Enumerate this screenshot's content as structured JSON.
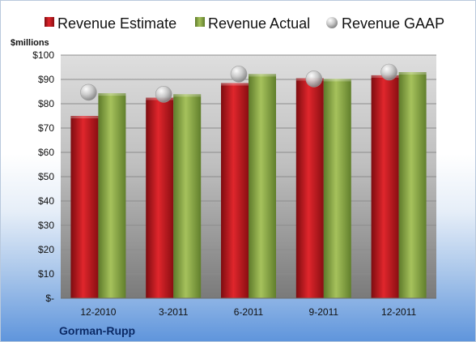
{
  "chart_data": {
    "type": "bar",
    "ylabel": "$millions",
    "ylim": [
      0,
      100
    ],
    "y_ticks": [
      "$-",
      "$10",
      "$20",
      "$30",
      "$40",
      "$50",
      "$60",
      "$70",
      "$80",
      "$90",
      "$100"
    ],
    "categories": [
      "12-2010",
      "3-2011",
      "6-2011",
      "9-2011",
      "12-2011"
    ],
    "series": [
      {
        "name": "Revenue Estimate",
        "type": "bar",
        "color": "#c0141c",
        "values": [
          75,
          82.5,
          88.5,
          90.5,
          91.7
        ]
      },
      {
        "name": "Revenue Actual",
        "type": "bar",
        "color": "#8fae45",
        "values": [
          84.3,
          83.9,
          92.2,
          90.2,
          93
        ]
      },
      {
        "name": "Revenue GAAP",
        "type": "marker",
        "color": "#c4c4c4",
        "values": [
          84.7,
          83.9,
          92.2,
          90.2,
          93
        ]
      }
    ],
    "legend_position": "top",
    "grid": true
  },
  "company": "Gorman-Rupp"
}
